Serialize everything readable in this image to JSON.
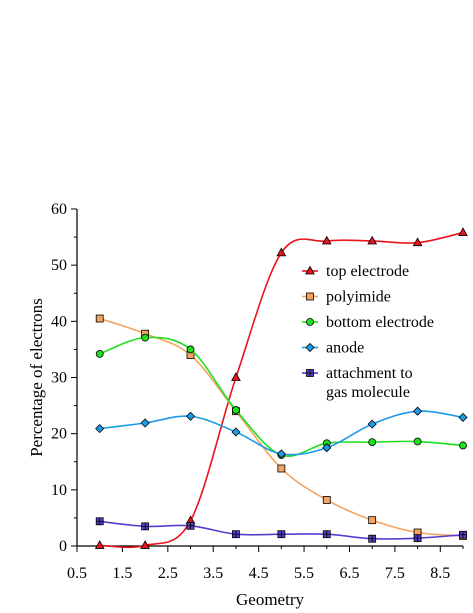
{
  "chart_data": {
    "type": "line",
    "title": "",
    "xlabel": "Geometry",
    "ylabel": "Percentage of electrons",
    "xlim": [
      0.5,
      9
    ],
    "ylim": [
      0,
      60
    ],
    "xticks": [
      "0.5",
      "1.5",
      "2.5",
      "3.5",
      "4.5",
      "5.5",
      "6.5",
      "7.5",
      "8.5"
    ],
    "yticks": [
      "0",
      "10",
      "20",
      "30",
      "40",
      "50",
      "60"
    ],
    "legend_position": "right",
    "x": [
      1,
      2,
      3,
      4,
      5,
      6,
      7,
      8,
      9
    ],
    "series": [
      {
        "name": "top electrode",
        "marker": "triangle",
        "color": "#e8141e",
        "values": [
          0.1,
          0.1,
          4.5,
          30.0,
          52.2,
          54.3,
          54.3,
          54.0,
          55.8
        ]
      },
      {
        "name": "polyimide",
        "marker": "square",
        "color": "#f4a460",
        "values": [
          40.5,
          37.8,
          34.0,
          24.0,
          13.8,
          8.2,
          4.6,
          2.4,
          1.8
        ]
      },
      {
        "name": "bottom electrode",
        "marker": "circle",
        "color": "#1ee11e",
        "values": [
          34.2,
          37.1,
          35.0,
          24.2,
          16.2,
          18.3,
          18.5,
          18.6,
          17.9
        ]
      },
      {
        "name": "anode",
        "marker": "diamond",
        "color": "#1e9be6",
        "values": [
          20.9,
          21.9,
          23.1,
          20.3,
          16.4,
          17.5,
          21.7,
          24.0,
          22.9
        ]
      },
      {
        "name": "attachment to\ngas molecule",
        "marker": "plus-square",
        "color": "#5a3ccd",
        "values": [
          4.4,
          3.5,
          3.6,
          2.1,
          2.1,
          2.1,
          1.3,
          1.4,
          2.0
        ]
      }
    ]
  }
}
